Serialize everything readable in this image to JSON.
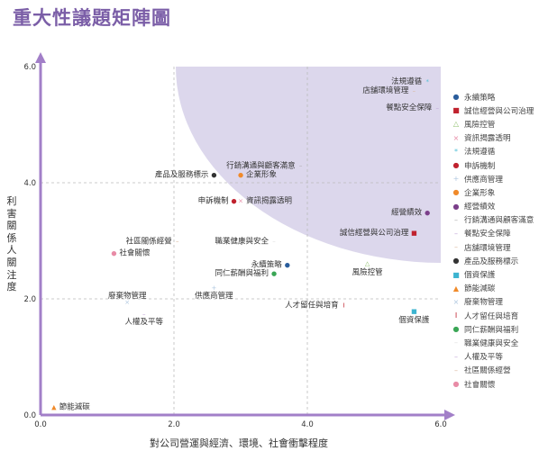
{
  "title": "重大性議題矩陣圖",
  "colors": {
    "accent": "#7b5ea7",
    "region": "#d8d3ea",
    "axis": "#a27fc8",
    "grid": "#bbbbbb"
  },
  "chart_data": {
    "type": "scatter",
    "xlabel": "對公司營運與經濟、環境、社會衝擊程度",
    "ylabel": "利害關係人關注度",
    "xlim": [
      0,
      6.0
    ],
    "ylim": [
      0,
      6.0
    ],
    "xticks": [
      "0.0",
      "2.0",
      "4.0",
      "6.0"
    ],
    "yticks": [
      "0.0",
      "2.0",
      "4.0",
      "6.0"
    ],
    "grid": true,
    "legend_position": "right",
    "series": [
      {
        "name": "永續策略",
        "x": 3.7,
        "y": 2.6,
        "color": "#2a5d9c",
        "marker": "●"
      },
      {
        "name": "誠信經營與公司治理",
        "x": 5.6,
        "y": 3.15,
        "color": "#c0222e",
        "marker": "■"
      },
      {
        "name": "風險控管",
        "x": 4.9,
        "y": 2.62,
        "color": "#8dbf6a",
        "marker": "△"
      },
      {
        "name": "資訊揭露透明",
        "x": 3.0,
        "y": 3.7,
        "color": "#e88ba6",
        "marker": "×"
      },
      {
        "name": "法規遵循",
        "x": 5.8,
        "y": 5.75,
        "color": "#55c0d8",
        "marker": "*"
      },
      {
        "name": "申訴機制",
        "x": 2.9,
        "y": 3.7,
        "color": "#c0222e",
        "marker": "●"
      },
      {
        "name": "供應商管理",
        "x": 2.6,
        "y": 2.2,
        "color": "#b0c8e0",
        "marker": "+"
      },
      {
        "name": "企業形象",
        "x": 3.0,
        "y": 4.15,
        "color": "#f08a2a",
        "marker": "●"
      },
      {
        "name": "經營績效",
        "x": 5.8,
        "y": 3.5,
        "color": "#7b3f8a",
        "marker": "●"
      },
      {
        "name": "行銷溝通與顧客滿意",
        "x": 3.9,
        "y": 4.3,
        "color": "#aaaaaa",
        "marker": "–"
      },
      {
        "name": "餐點安全保障",
        "x": 5.95,
        "y": 5.3,
        "color": "#bfa3d6",
        "marker": "–"
      },
      {
        "name": "店舖環境管理",
        "x": 5.6,
        "y": 5.6,
        "color": "#d9b59a",
        "marker": "–"
      },
      {
        "name": "產品及服務標示",
        "x": 2.6,
        "y": 4.15,
        "color": "#333333",
        "marker": "●"
      },
      {
        "name": "個資保護",
        "x": 5.6,
        "y": 1.8,
        "color": "#3cb4d0",
        "marker": "■"
      },
      {
        "name": "節能減碳",
        "x": 0.2,
        "y": 0.15,
        "color": "#f08a2a",
        "marker": "▲"
      },
      {
        "name": "廢棄物管理",
        "x": 1.3,
        "y": 1.95,
        "color": "#b0c8e0",
        "marker": "×"
      },
      {
        "name": "人才留任與培育",
        "x": 4.55,
        "y": 1.9,
        "color": "#c0222e",
        "marker": "I"
      },
      {
        "name": "同仁薪酬與福利",
        "x": 3.5,
        "y": 2.45,
        "color": "#3aa655",
        "marker": "●"
      },
      {
        "name": "職業健康與安全",
        "x": 3.5,
        "y": 3.0,
        "color": "#dddddd",
        "marker": "–"
      },
      {
        "name": "人權及平等",
        "x": 1.55,
        "y": 1.75,
        "color": "#bfa3d6",
        "marker": "–"
      },
      {
        "name": "社區關係經營",
        "x": 2.05,
        "y": 3.0,
        "color": "#d9b59a",
        "marker": "–"
      },
      {
        "name": "社會關懷",
        "x": 1.1,
        "y": 2.8,
        "color": "#e88ba6",
        "marker": "●"
      }
    ]
  }
}
